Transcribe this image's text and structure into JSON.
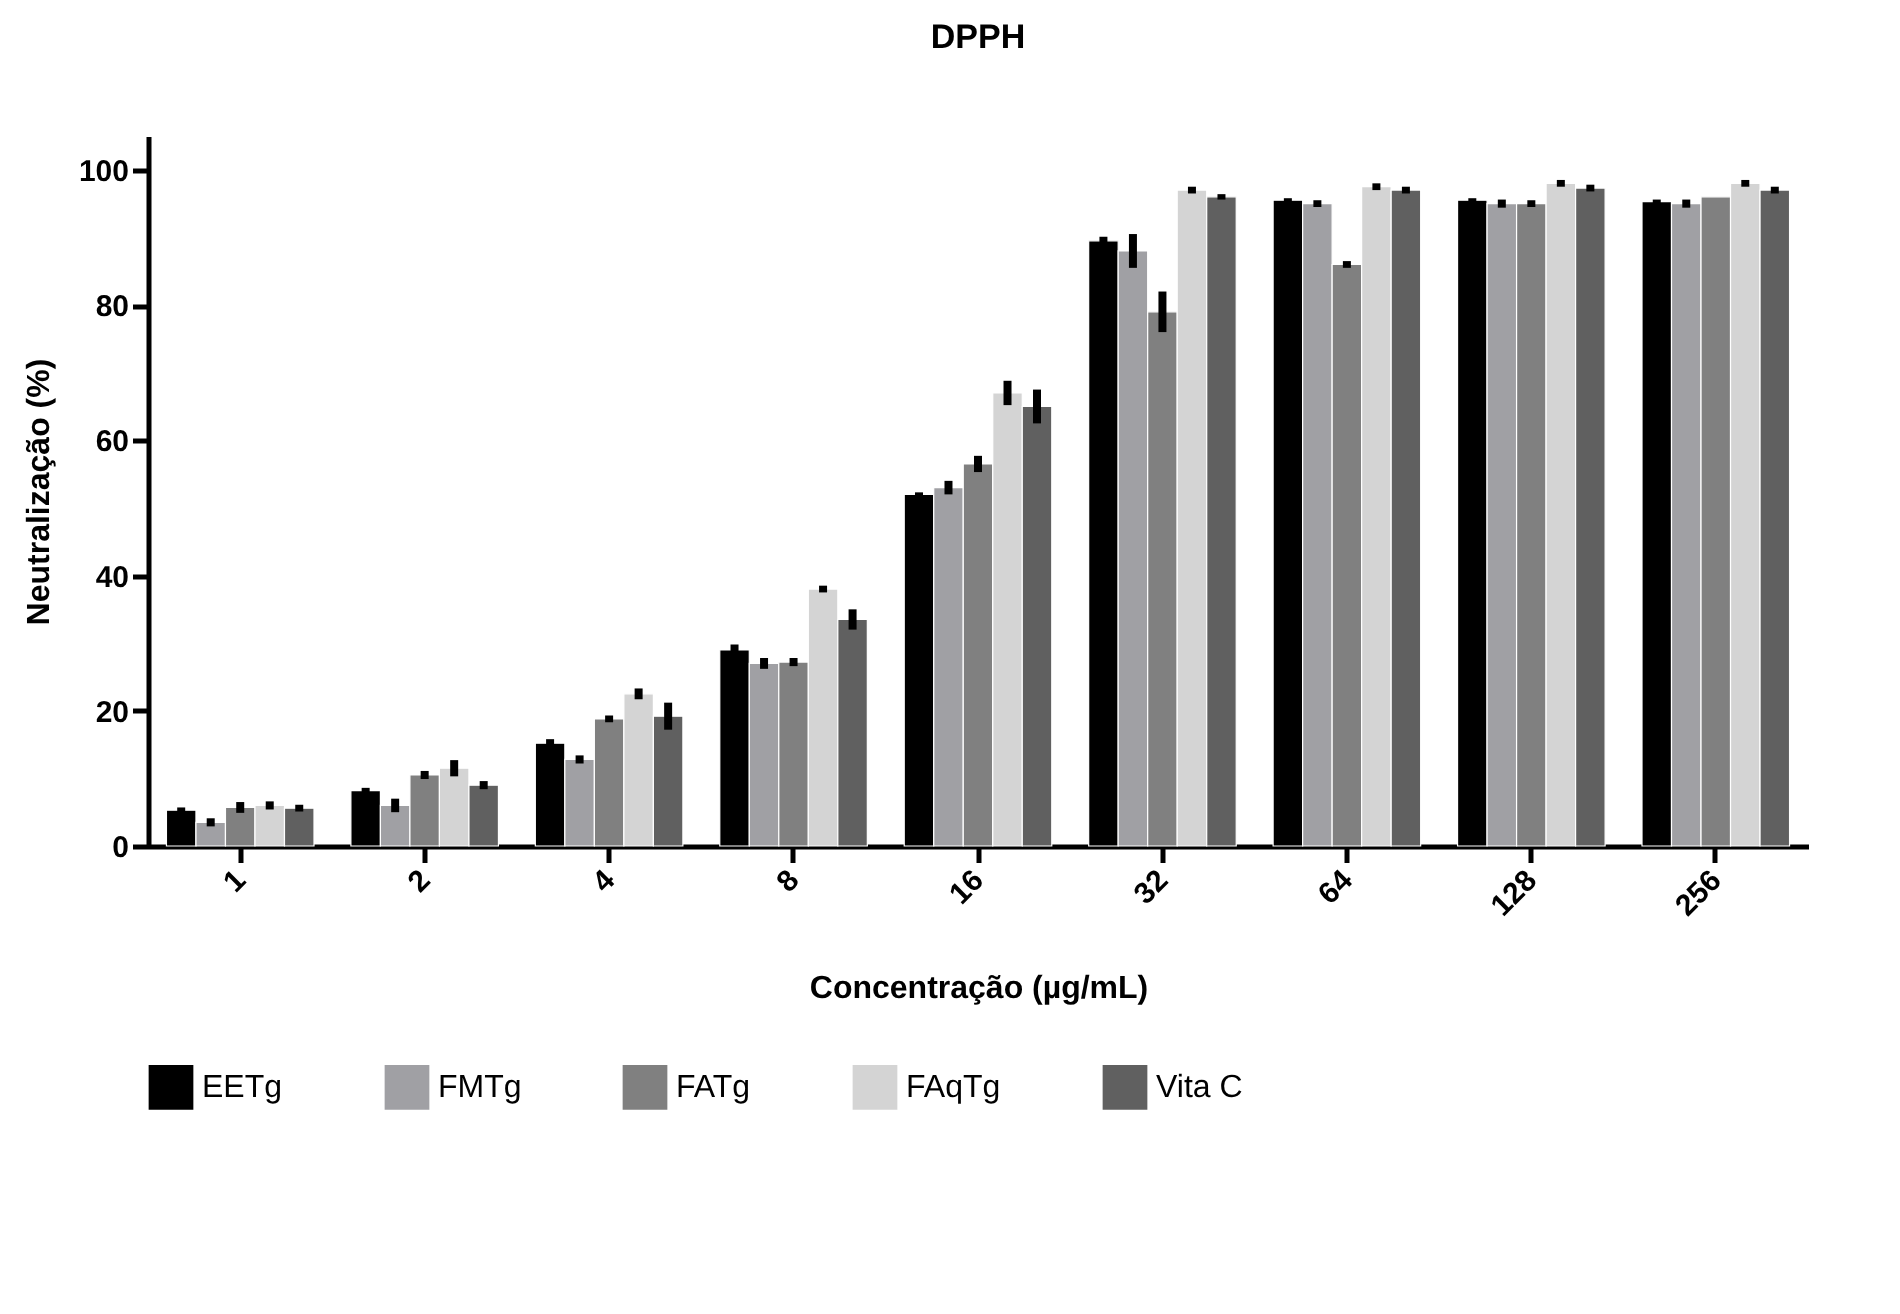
{
  "chart_data": {
    "type": "bar",
    "title": "DPPH",
    "xlabel": "Concentração (µg/mL)",
    "ylabel": "Neutralização (%)",
    "categories": [
      "1",
      "2",
      "4",
      "8",
      "16",
      "32",
      "64",
      "128",
      "256"
    ],
    "series": [
      {
        "name": "EETg",
        "color": "#000000",
        "values": [
          5.3,
          8.2,
          15.2,
          29,
          52,
          89.5,
          95.5,
          95.5,
          95.3
        ],
        "errors": [
          0.4,
          0.4,
          0.6,
          0.8,
          0.3,
          0.6,
          0.3,
          0.3,
          0.3
        ]
      },
      {
        "name": "FMTg",
        "color": "#a0a0a4",
        "values": [
          3.5,
          6,
          12.8,
          27,
          53,
          88,
          95,
          95,
          95
        ],
        "errors": [
          0.6,
          1,
          0.6,
          0.8,
          1,
          2.5,
          0.5,
          0.6,
          0.6
        ]
      },
      {
        "name": "FATg",
        "color": "#808080",
        "values": [
          5.7,
          10.5,
          18.8,
          27.2,
          56.5,
          79,
          86,
          95,
          96
        ],
        "errors": [
          0.8,
          0.6,
          0.5,
          0.6,
          1.2,
          3,
          0.5,
          0.5,
          null
        ]
      },
      {
        "name": "FAqTg",
        "color": "#d4d4d4",
        "values": [
          6,
          11.5,
          22.5,
          38,
          67,
          97,
          97.5,
          98,
          98
        ],
        "errors": [
          0.6,
          1.2,
          0.8,
          0.5,
          1.8,
          0.5,
          0.5,
          0.5,
          0.5
        ]
      },
      {
        "name": "Vita C",
        "color": "#606060",
        "values": [
          5.6,
          9,
          19.2,
          33.5,
          65,
          96,
          97,
          97.3,
          97
        ],
        "errors": [
          0.5,
          0.6,
          2,
          1.5,
          2.5,
          0.4,
          0.5,
          0.5,
          0.5
        ]
      }
    ],
    "ylim": [
      0,
      105
    ],
    "yticks": [
      0,
      20,
      40,
      60,
      80,
      100
    ],
    "grid": false,
    "legend": "bottom"
  }
}
